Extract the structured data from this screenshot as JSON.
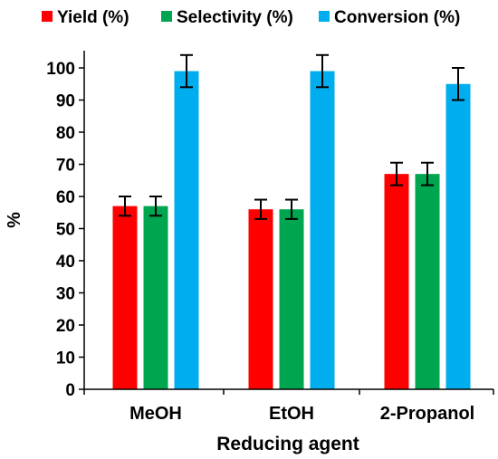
{
  "chart_data": {
    "type": "bar",
    "title": "",
    "xlabel": "Reducing agent",
    "ylabel": "%",
    "categories": [
      "MeOH",
      "EtOH",
      "2-Propanol"
    ],
    "ylim": [
      0,
      100
    ],
    "yticks": [
      0,
      10,
      20,
      30,
      40,
      50,
      60,
      70,
      80,
      90,
      100
    ],
    "grid": false,
    "legend_position": "top",
    "series": [
      {
        "name": "Yield (%)",
        "color": "#ff0000",
        "values": [
          57,
          56,
          67
        ],
        "errors": [
          3,
          3,
          3.5
        ]
      },
      {
        "name": "Selectivity (%)",
        "color": "#00a550",
        "values": [
          57,
          56,
          67
        ],
        "errors": [
          3,
          3,
          3.5
        ]
      },
      {
        "name": "Conversion (%)",
        "color": "#00aeef",
        "values": [
          99,
          99,
          95
        ],
        "errors": [
          5,
          5,
          5
        ]
      }
    ]
  }
}
